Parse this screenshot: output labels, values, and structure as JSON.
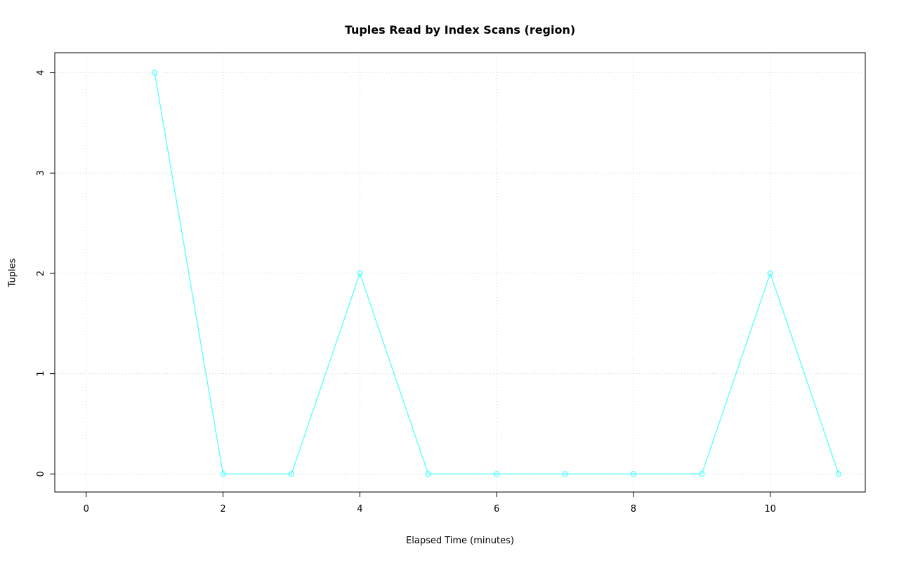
{
  "chart_data": {
    "type": "line",
    "title": "Tuples Read by Index Scans (region)",
    "xlabel": "Elapsed Time (minutes)",
    "ylabel": "Tuples",
    "x": [
      1,
      2,
      3,
      4,
      5,
      6,
      7,
      8,
      9,
      10,
      11
    ],
    "y": [
      4,
      0,
      0,
      2,
      0,
      0,
      0,
      0,
      0,
      2,
      0
    ],
    "xticks": [
      0,
      2,
      4,
      6,
      8,
      10
    ],
    "yticks": [
      0,
      1,
      2,
      3,
      4
    ],
    "xlim": [
      -0.46,
      11.39
    ],
    "ylim": [
      -0.18,
      4.2
    ],
    "grid": true,
    "legend": "none",
    "marker": "open-circle",
    "series_color": "#00FFFF",
    "grid_color": "#D3D3D3",
    "axis_color": "#000000",
    "background_color": "#FFFFFF"
  }
}
